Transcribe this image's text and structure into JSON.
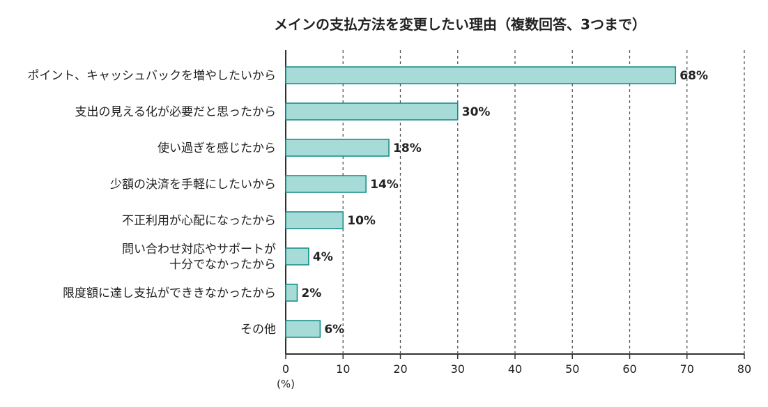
{
  "chart_data": {
    "type": "bar",
    "orientation": "horizontal",
    "title": "メインの支払方法を変更したい理由（複数回答、3つまで）",
    "categories": [
      "ポイント、キャッシュバックを増やしたいから",
      "支出の見える化が必要だと思ったから",
      "使い過ぎを感じたから",
      "少額の決済を手軽にしたいから",
      "不正利用が心配になったから",
      "問い合わせ対応やサポートが\n十分でなかったから",
      "限度額に達し支払ができきなかったから",
      "その他"
    ],
    "values": [
      68,
      30,
      18,
      14,
      10,
      4,
      2,
      6
    ],
    "value_labels": [
      "68%",
      "30%",
      "18%",
      "14%",
      "10%",
      "4%",
      "2%",
      "6%"
    ],
    "xlim": [
      0,
      80
    ],
    "xticks": [
      0,
      10,
      20,
      30,
      40,
      50,
      60,
      70,
      80
    ],
    "xlabel": "(%)",
    "grid": "vertical-dashed",
    "bar_color": "#a6dbd7",
    "bar_edge_color": "#0f8b86"
  }
}
